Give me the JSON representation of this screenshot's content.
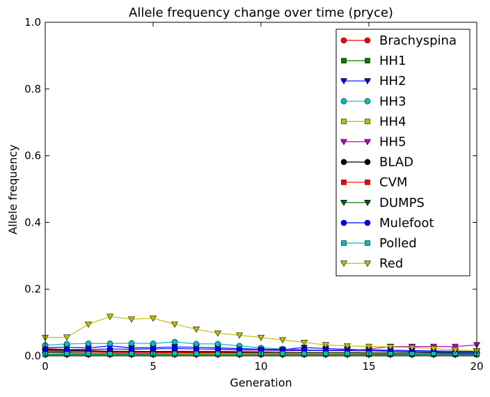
{
  "chart_data": {
    "type": "line",
    "title": "Allele frequency change over time (pryce)",
    "xlabel": "Generation",
    "ylabel": "Allele frequency",
    "xlim": [
      0,
      20
    ],
    "ylim": [
      0,
      1.0
    ],
    "xticks": [
      "0",
      "5",
      "10",
      "15",
      "20"
    ],
    "yticks": [
      "0.0",
      "0.2",
      "0.4",
      "0.6",
      "0.8",
      "1.0"
    ],
    "legend_position": "top-right",
    "grid": false,
    "x": [
      0,
      1,
      2,
      3,
      4,
      5,
      6,
      7,
      8,
      9,
      10,
      11,
      12,
      13,
      14,
      15,
      16,
      17,
      18,
      19,
      20
    ],
    "series": [
      {
        "name": "Brachyspina",
        "color": "#ff0000",
        "marker": "circle",
        "values": [
          0.022,
          0.019,
          0.016,
          0.014,
          0.013,
          0.012,
          0.01,
          0.01,
          0.009,
          0.009,
          0.008,
          0.008,
          0.008,
          0.007,
          0.007,
          0.007,
          0.007,
          0.006,
          0.006,
          0.006,
          0.006
        ]
      },
      {
        "name": "HH1",
        "color": "#008000",
        "marker": "square",
        "values": [
          0.01,
          0.009,
          0.008,
          0.008,
          0.008,
          0.007,
          0.007,
          0.007,
          0.007,
          0.006,
          0.006,
          0.006,
          0.006,
          0.005,
          0.005,
          0.005,
          0.005,
          0.005,
          0.005,
          0.005,
          0.005
        ]
      },
      {
        "name": "HH2",
        "color": "#0000ff",
        "marker": "triangle-down",
        "values": [
          0.025,
          0.026,
          0.024,
          0.03,
          0.024,
          0.025,
          0.027,
          0.026,
          0.024,
          0.022,
          0.02,
          0.019,
          0.025,
          0.022,
          0.02,
          0.018,
          0.017,
          0.016,
          0.015,
          0.014,
          0.013
        ]
      },
      {
        "name": "HH3",
        "color": "#00bfbf",
        "marker": "circle",
        "values": [
          0.032,
          0.036,
          0.037,
          0.037,
          0.038,
          0.037,
          0.042,
          0.036,
          0.036,
          0.03,
          0.024,
          0.021,
          0.018,
          0.017,
          0.016,
          0.015,
          0.014,
          0.013,
          0.012,
          0.011,
          0.01
        ]
      },
      {
        "name": "HH4",
        "color": "#bfbf00",
        "marker": "square",
        "values": [
          0.005,
          0.005,
          0.005,
          0.005,
          0.005,
          0.005,
          0.005,
          0.005,
          0.005,
          0.005,
          0.005,
          0.005,
          0.005,
          0.005,
          0.005,
          0.005,
          0.005,
          0.005,
          0.005,
          0.005,
          0.005
        ]
      },
      {
        "name": "HH5",
        "color": "#bf00bf",
        "marker": "triangle-down",
        "values": [
          0.012,
          0.012,
          0.012,
          0.013,
          0.013,
          0.013,
          0.014,
          0.014,
          0.014,
          0.014,
          0.015,
          0.015,
          0.016,
          0.017,
          0.018,
          0.02,
          0.028,
          0.028,
          0.028,
          0.028,
          0.033
        ]
      },
      {
        "name": "BLAD",
        "color": "#000000",
        "marker": "circle",
        "values": [
          0.018,
          0.016,
          0.015,
          0.014,
          0.014,
          0.013,
          0.013,
          0.012,
          0.012,
          0.011,
          0.011,
          0.01,
          0.01,
          0.01,
          0.01,
          0.009,
          0.009,
          0.009,
          0.009,
          0.008,
          0.008
        ]
      },
      {
        "name": "CVM",
        "color": "#ff0000",
        "marker": "square",
        "values": [
          0.015,
          0.013,
          0.012,
          0.011,
          0.01,
          0.01,
          0.009,
          0.009,
          0.008,
          0.008,
          0.008,
          0.007,
          0.007,
          0.007,
          0.007,
          0.006,
          0.006,
          0.006,
          0.006,
          0.006,
          0.005
        ]
      },
      {
        "name": "DUMPS",
        "color": "#006400",
        "marker": "triangle-down",
        "values": [
          0.003,
          0.003,
          0.003,
          0.003,
          0.003,
          0.003,
          0.003,
          0.003,
          0.003,
          0.003,
          0.003,
          0.003,
          0.003,
          0.003,
          0.003,
          0.003,
          0.003,
          0.003,
          0.003,
          0.003,
          0.003
        ]
      },
      {
        "name": "Mulefoot",
        "color": "#0000ff",
        "marker": "circle",
        "values": [
          0.02,
          0.019,
          0.019,
          0.021,
          0.02,
          0.021,
          0.022,
          0.021,
          0.02,
          0.019,
          0.019,
          0.018,
          0.017,
          0.016,
          0.016,
          0.015,
          0.014,
          0.013,
          0.012,
          0.011,
          0.01
        ]
      },
      {
        "name": "Polled",
        "color": "#00bfbf",
        "marker": "square",
        "values": [
          0.006,
          0.006,
          0.006,
          0.006,
          0.006,
          0.006,
          0.007,
          0.007,
          0.007,
          0.007,
          0.007,
          0.007,
          0.007,
          0.007,
          0.007,
          0.007,
          0.006,
          0.006,
          0.006,
          0.006,
          0.006
        ]
      },
      {
        "name": "Red",
        "color": "#bfbf00",
        "marker": "triangle-down",
        "values": [
          0.055,
          0.056,
          0.095,
          0.118,
          0.11,
          0.113,
          0.095,
          0.08,
          0.068,
          0.062,
          0.055,
          0.048,
          0.04,
          0.033,
          0.03,
          0.028,
          0.027,
          0.025,
          0.022,
          0.018,
          0.015
        ]
      }
    ]
  }
}
